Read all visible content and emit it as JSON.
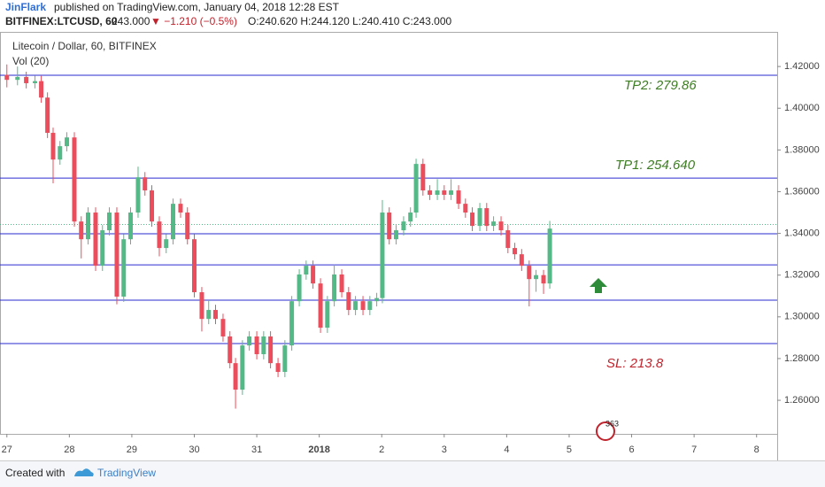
{
  "header": {
    "author": "JinFlark",
    "published": "published on TradingView.com, January 04, 2018 12:28 EST",
    "symbol": "BITFINEX:LTCUSD, 60",
    "last": "243.000",
    "change": "▼ −1.210 (−0.5%)",
    "ohlc": "O:240.620 H:244.120 L:240.410 C:243.000"
  },
  "footer": {
    "created": "Created with",
    "brand": "TradingView"
  },
  "chart_data": {
    "type": "candlestick",
    "legend_title": "Litecoin / Dollar, 60, BITFINEX",
    "indicator": "Vol (20)",
    "badge": "363",
    "x": [
      0,
      0.17,
      0.31,
      0.45,
      0.55,
      0.65,
      0.74,
      0.85,
      0.96,
      1.08,
      1.19,
      1.3,
      1.42,
      1.53,
      1.64,
      1.76,
      1.87,
      1.98,
      2.1,
      2.21,
      2.32,
      2.44,
      2.55,
      2.66,
      2.78,
      2.89,
      3.0,
      3.12,
      3.23,
      3.34,
      3.46,
      3.57,
      3.66,
      3.77,
      3.88,
      4.0,
      4.11,
      4.22,
      4.34,
      4.45,
      4.56,
      4.68,
      4.79,
      4.9,
      5.02,
      5.13,
      5.24,
      5.36,
      5.47,
      5.58,
      5.7,
      5.81,
      5.92,
      6.01,
      6.12,
      6.23,
      6.35,
      6.46,
      6.55,
      6.66,
      6.77,
      6.89,
      7.0,
      7.11,
      7.23,
      7.34,
      7.45,
      7.57,
      7.68,
      7.79,
      7.91,
      8.02,
      8.13,
      8.24,
      8.36,
      8.47,
      8.59,
      8.69
    ],
    "open": [
      1.416,
      1.4136,
      1.415,
      1.412,
      1.413,
      1.4051,
      1.3882,
      1.3754,
      1.3818,
      1.386,
      1.3457,
      1.3372,
      1.35,
      1.3245,
      1.3415,
      1.35,
      1.3097,
      1.3372,
      1.35,
      1.3669,
      1.3606,
      1.3457,
      1.333,
      1.3372,
      1.3542,
      1.35,
      1.3372,
      1.3118,
      1.299,
      1.3033,
      1.299,
      1.2906,
      1.2778,
      1.2651,
      1.2863,
      1.2906,
      1.2821,
      1.2906,
      1.2778,
      1.2736,
      1.2863,
      1.3075,
      1.3203,
      1.3245,
      1.316,
      1.2948,
      1.3075,
      1.3203,
      1.3118,
      1.3033,
      1.3075,
      1.3033,
      1.3075,
      1.309,
      1.35,
      1.3372,
      1.3415,
      1.3457,
      1.35,
      1.3733,
      1.3606,
      1.3585,
      1.3606,
      1.3585,
      1.3606,
      1.3542,
      1.35,
      1.3436,
      1.3521,
      1.3436,
      1.3457,
      1.3415,
      1.333,
      1.33,
      1.3245,
      1.3181,
      1.32,
      1.316
    ],
    "high": [
      1.421,
      1.42,
      1.4175,
      1.4155,
      1.4155,
      1.4076,
      1.3907,
      1.3843,
      1.3885,
      1.3885,
      1.3482,
      1.3525,
      1.3525,
      1.344,
      1.3525,
      1.3525,
      1.3397,
      1.3525,
      1.372,
      1.3694,
      1.3631,
      1.3482,
      1.3397,
      1.3567,
      1.3567,
      1.3525,
      1.3397,
      1.3143,
      1.308,
      1.3058,
      1.3015,
      1.2931,
      1.2803,
      1.2888,
      1.2931,
      1.2931,
      1.2931,
      1.2931,
      1.2803,
      1.2888,
      1.31,
      1.3228,
      1.327,
      1.327,
      1.3185,
      1.31,
      1.325,
      1.3228,
      1.3143,
      1.31,
      1.31,
      1.31,
      1.3115,
      1.356,
      1.3525,
      1.344,
      1.3482,
      1.3525,
      1.3758,
      1.3758,
      1.3631,
      1.366,
      1.3631,
      1.366,
      1.3631,
      1.3567,
      1.3525,
      1.3546,
      1.3546,
      1.3482,
      1.3482,
      1.344,
      1.3355,
      1.3325,
      1.327,
      1.3225,
      1.3225,
      1.346
    ],
    "low": [
      1.41,
      1.411,
      1.4095,
      1.4095,
      1.4026,
      1.3857,
      1.364,
      1.3729,
      1.3793,
      1.3432,
      1.328,
      1.3347,
      1.322,
      1.322,
      1.339,
      1.306,
      1.3072,
      1.3347,
      1.3475,
      1.3581,
      1.3432,
      1.329,
      1.3305,
      1.3347,
      1.3475,
      1.3347,
      1.3093,
      1.293,
      1.2965,
      1.2965,
      1.2881,
      1.2753,
      1.256,
      1.2626,
      1.2838,
      1.2796,
      1.2796,
      1.2753,
      1.2711,
      1.2711,
      1.2838,
      1.305,
      1.3178,
      1.3135,
      1.2923,
      1.2923,
      1.305,
      1.3093,
      1.3008,
      1.3008,
      1.3008,
      1.3008,
      1.305,
      1.3065,
      1.3347,
      1.3347,
      1.339,
      1.3432,
      1.3475,
      1.3581,
      1.356,
      1.356,
      1.356,
      1.356,
      1.3517,
      1.3475,
      1.3411,
      1.3411,
      1.3411,
      1.3411,
      1.339,
      1.3305,
      1.3275,
      1.322,
      1.305,
      1.312,
      1.311,
      1.3135
    ],
    "close": [
      1.4136,
      1.415,
      1.412,
      1.413,
      1.4051,
      1.3882,
      1.3754,
      1.3818,
      1.386,
      1.3457,
      1.3372,
      1.35,
      1.3245,
      1.3415,
      1.35,
      1.3097,
      1.3372,
      1.35,
      1.3669,
      1.3606,
      1.3457,
      1.333,
      1.3372,
      1.3542,
      1.35,
      1.3372,
      1.3118,
      1.299,
      1.3033,
      1.299,
      1.2906,
      1.2778,
      1.2651,
      1.2863,
      1.2906,
      1.2821,
      1.2906,
      1.2778,
      1.2736,
      1.2863,
      1.3075,
      1.3203,
      1.3245,
      1.316,
      1.2948,
      1.3075,
      1.3203,
      1.3118,
      1.3033,
      1.3075,
      1.3033,
      1.3075,
      1.309,
      1.35,
      1.3372,
      1.3415,
      1.3457,
      1.35,
      1.3733,
      1.3606,
      1.3585,
      1.3606,
      1.3585,
      1.3606,
      1.3542,
      1.35,
      1.3436,
      1.3521,
      1.3436,
      1.3457,
      1.3415,
      1.333,
      1.33,
      1.3245,
      1.3181,
      1.32,
      1.316,
      1.3423
    ],
    "up_color": "#53b987",
    "down_color": "#eb4d5c",
    "levels": [
      1.4158,
      1.3665,
      1.3398,
      1.3249,
      1.308,
      1.2872
    ],
    "level_color": "#2b2bd0",
    "last_price": 1.3443,
    "last_color": "#53b987",
    "annotations": [
      {
        "text": "TP2: 279.86",
        "color": "#3d7d22"
      },
      {
        "text": "TP1: 254.640",
        "color": "#3d7d22"
      },
      {
        "text": "SL: 213.8",
        "color": "#c0232c"
      }
    ],
    "xlim": [
      -0.11,
      12.33
    ],
    "xticks": [
      {
        "value": 0,
        "label": "27"
      },
      {
        "value": 1,
        "label": "28"
      },
      {
        "value": 2,
        "label": "29"
      },
      {
        "value": 3,
        "label": "30"
      },
      {
        "value": 4,
        "label": "31"
      },
      {
        "value": 5,
        "label": "2018"
      },
      {
        "value": 6,
        "label": "2"
      },
      {
        "value": 7,
        "label": "3"
      },
      {
        "value": 8,
        "label": "4"
      },
      {
        "value": 9,
        "label": "5"
      },
      {
        "value": 10,
        "label": "6"
      },
      {
        "value": 11,
        "label": "7"
      },
      {
        "value": 12,
        "label": "8"
      }
    ],
    "ylim": [
      1.2439,
      1.4366
    ],
    "yticks": [
      {
        "value": 1.26,
        "label": "1.26000"
      },
      {
        "value": 1.28,
        "label": "1.28000"
      },
      {
        "value": 1.3,
        "label": "1.30000"
      },
      {
        "value": 1.32,
        "label": "1.32000"
      },
      {
        "value": 1.34,
        "label": "1.34000"
      },
      {
        "value": 1.36,
        "label": "1.36000"
      },
      {
        "value": 1.38,
        "label": "1.38000"
      },
      {
        "value": 1.4,
        "label": "1.40000"
      },
      {
        "value": 1.42,
        "label": "1.42000"
      }
    ]
  }
}
